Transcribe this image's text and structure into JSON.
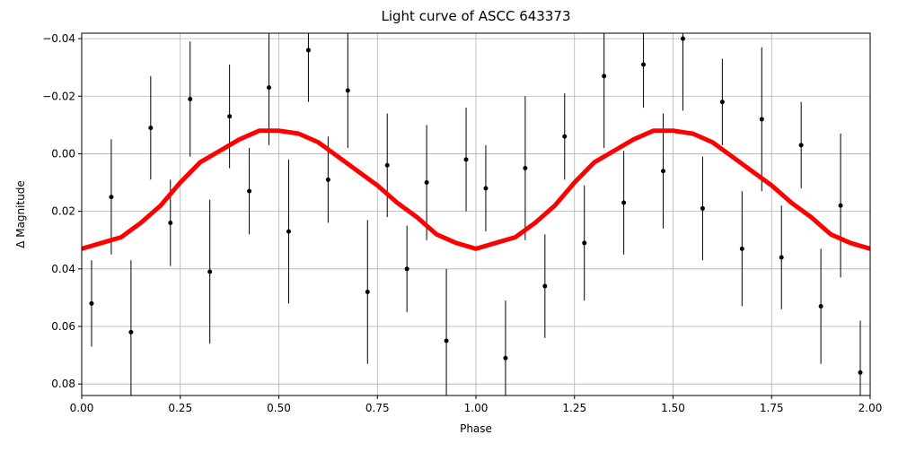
{
  "chart_data": {
    "type": "scatter",
    "title": "Light curve of ASCC 643373",
    "x_label": "Phase",
    "y_label": "Δ Magnitude",
    "xlim": [
      0,
      2
    ],
    "ylim": [
      -0.0419,
      0.084
    ],
    "y_inverted": true,
    "grid": true,
    "xticks": [
      {
        "value": 0,
        "label": "0.00"
      },
      0.25,
      {
        "value": 0.5,
        "label": "0.50"
      },
      0.75,
      {
        "value": 1,
        "label": "1.00"
      },
      1.25,
      {
        "value": 1.5,
        "label": "1.50"
      },
      1.75,
      {
        "value": 2,
        "label": "2.00"
      }
    ],
    "yticks": [
      {
        "value": -0.04,
        "label": "−0.04"
      },
      {
        "value": -0.02,
        "label": "−0.02"
      },
      {
        "value": 0,
        "label": "0.00"
      },
      0.02,
      0.04,
      0.06,
      0.08
    ],
    "series": [
      {
        "color": "#000000",
        "x": [
          0.025,
          0.075,
          0.125,
          0.175,
          0.225,
          0.275,
          0.325,
          0.375,
          0.425,
          0.475,
          0.525,
          0.575,
          0.625,
          0.675,
          0.725,
          0.775,
          0.825,
          0.875,
          0.925,
          0.975,
          1.025,
          1.075,
          1.125,
          1.175,
          1.225,
          1.275,
          1.325,
          1.375,
          1.425,
          1.475,
          1.525,
          1.575,
          1.625,
          1.675,
          1.725,
          1.775,
          1.825,
          1.875,
          1.925,
          1.975
        ],
        "values": [
          0.052,
          0.015,
          0.062,
          -0.009,
          0.024,
          -0.019,
          0.041,
          -0.013,
          0.013,
          -0.023,
          0.027,
          -0.036,
          0.009,
          -0.022,
          0.048,
          0.004,
          0.04,
          0.01,
          0.065,
          0.002,
          0.012,
          0.071,
          0.005,
          0.046,
          -0.006,
          0.031,
          -0.027,
          0.017,
          -0.031,
          0.006,
          -0.04,
          0.019,
          -0.018,
          0.033,
          -0.012,
          0.036,
          -0.003,
          0.053,
          0.018,
          0.076
        ],
        "errors": [
          0.015,
          0.02,
          0.025,
          0.018,
          0.015,
          0.02,
          0.025,
          0.018,
          0.015,
          0.02,
          0.025,
          0.018,
          0.015,
          0.02,
          0.025,
          0.018,
          0.015,
          0.02,
          0.025,
          0.018,
          0.015,
          0.02,
          0.025,
          0.018,
          0.015,
          0.02,
          0.025,
          0.018,
          0.015,
          0.02,
          0.025,
          0.018,
          0.015,
          0.02,
          0.025,
          0.018,
          0.015,
          0.02,
          0.025,
          0.018
        ]
      },
      {
        "color": "#ff0000",
        "line": true,
        "x": [
          0,
          0.05,
          0.1,
          0.15,
          0.2,
          0.25,
          0.3,
          0.35,
          0.4,
          0.45,
          0.5,
          0.55,
          0.6,
          0.65,
          0.7,
          0.75,
          0.8,
          0.85,
          0.9,
          0.95,
          1,
          1.05,
          1.1,
          1.15,
          1.2,
          1.25,
          1.3,
          1.35,
          1.4,
          1.45,
          1.5,
          1.55,
          1.6,
          1.65,
          1.7,
          1.75,
          1.8,
          1.85,
          1.9,
          1.95,
          2
        ],
        "values": [
          0.033,
          0.031,
          0.029,
          0.024,
          0.018,
          0.01,
          0.003,
          -0.001,
          -0.005,
          -0.008,
          -0.008,
          -0.007,
          -0.004,
          0.001,
          0.006,
          0.011,
          0.017,
          0.022,
          0.028,
          0.031,
          0.033,
          0.031,
          0.029,
          0.024,
          0.018,
          0.01,
          0.003,
          -0.001,
          -0.005,
          -0.008,
          -0.008,
          -0.007,
          -0.004,
          0.001,
          0.006,
          0.011,
          0.017,
          0.022,
          0.028,
          0.031,
          0.033
        ]
      }
    ]
  }
}
